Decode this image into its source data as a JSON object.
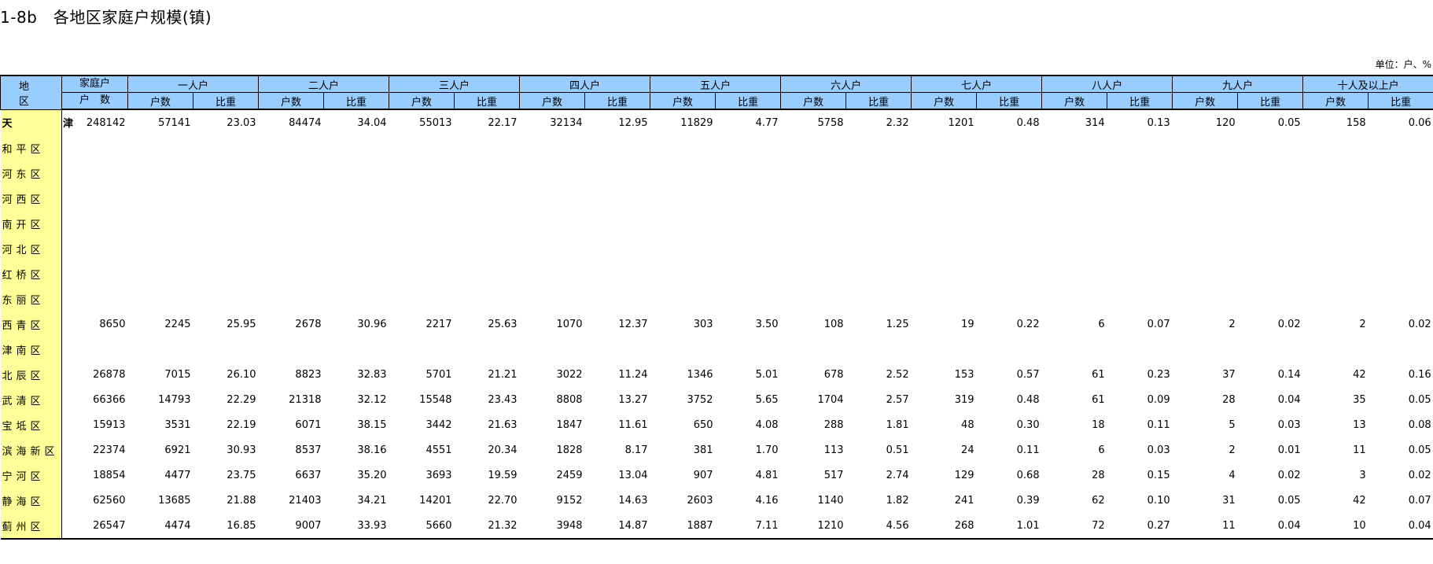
{
  "title": "1-8b   各地区家庭户规模(镇)",
  "unit": "单位：户、%",
  "header": {
    "region": "地　区",
    "total_line1": "家庭户",
    "total_line2": "户　数",
    "groups": [
      "一人户",
      "二人户",
      "三人户",
      "四人户",
      "五人户",
      "六人户",
      "七人户",
      "八人户",
      "九人户",
      "十人及以上户"
    ],
    "sub_count": "户数",
    "sub_share": "比重"
  },
  "rows": [
    {
      "region": "天  津",
      "values": [
        "248142",
        "57141",
        "23.03",
        "84474",
        "34.04",
        "55013",
        "22.17",
        "32134",
        "12.95",
        "11829",
        "4.77",
        "5758",
        "2.32",
        "1201",
        "0.48",
        "314",
        "0.13",
        "120",
        "0.05",
        "158",
        "0.06"
      ]
    },
    {
      "region": "和平区",
      "values": []
    },
    {
      "region": "河东区",
      "values": []
    },
    {
      "region": "河西区",
      "values": []
    },
    {
      "region": "南开区",
      "values": []
    },
    {
      "region": "河北区",
      "values": []
    },
    {
      "region": "红桥区",
      "values": []
    },
    {
      "region": "东丽区",
      "values": []
    },
    {
      "region": "西青区",
      "values": [
        "8650",
        "2245",
        "25.95",
        "2678",
        "30.96",
        "2217",
        "25.63",
        "1070",
        "12.37",
        "303",
        "3.50",
        "108",
        "1.25",
        "19",
        "0.22",
        "6",
        "0.07",
        "2",
        "0.02",
        "2",
        "0.02"
      ]
    },
    {
      "region": "津南区",
      "values": []
    },
    {
      "region": "北辰区",
      "values": [
        "26878",
        "7015",
        "26.10",
        "8823",
        "32.83",
        "5701",
        "21.21",
        "3022",
        "11.24",
        "1346",
        "5.01",
        "678",
        "2.52",
        "153",
        "0.57",
        "61",
        "0.23",
        "37",
        "0.14",
        "42",
        "0.16"
      ]
    },
    {
      "region": "武清区",
      "values": [
        "66366",
        "14793",
        "22.29",
        "21318",
        "32.12",
        "15548",
        "23.43",
        "8808",
        "13.27",
        "3752",
        "5.65",
        "1704",
        "2.57",
        "319",
        "0.48",
        "61",
        "0.09",
        "28",
        "0.04",
        "35",
        "0.05"
      ]
    },
    {
      "region": "宝坻区",
      "values": [
        "15913",
        "3531",
        "22.19",
        "6071",
        "38.15",
        "3442",
        "21.63",
        "1847",
        "11.61",
        "650",
        "4.08",
        "288",
        "1.81",
        "48",
        "0.30",
        "18",
        "0.11",
        "5",
        "0.03",
        "13",
        "0.08"
      ]
    },
    {
      "region": "滨海新区",
      "values": [
        "22374",
        "6921",
        "30.93",
        "8537",
        "38.16",
        "4551",
        "20.34",
        "1828",
        "8.17",
        "381",
        "1.70",
        "113",
        "0.51",
        "24",
        "0.11",
        "6",
        "0.03",
        "2",
        "0.01",
        "11",
        "0.05"
      ]
    },
    {
      "region": "宁河区",
      "values": [
        "18854",
        "4477",
        "23.75",
        "6637",
        "35.20",
        "3693",
        "19.59",
        "2459",
        "13.04",
        "907",
        "4.81",
        "517",
        "2.74",
        "129",
        "0.68",
        "28",
        "0.15",
        "4",
        "0.02",
        "3",
        "0.02"
      ]
    },
    {
      "region": "静海区",
      "values": [
        "62560",
        "13685",
        "21.88",
        "21403",
        "34.21",
        "14201",
        "22.70",
        "9152",
        "14.63",
        "2603",
        "4.16",
        "1140",
        "1.82",
        "241",
        "0.39",
        "62",
        "0.10",
        "31",
        "0.05",
        "42",
        "0.07"
      ]
    },
    {
      "region": "蓟州区",
      "values": [
        "26547",
        "4474",
        "16.85",
        "9007",
        "33.93",
        "5660",
        "21.32",
        "3948",
        "14.87",
        "1887",
        "7.11",
        "1210",
        "4.56",
        "268",
        "1.01",
        "72",
        "0.27",
        "11",
        "0.04",
        "10",
        "0.04"
      ]
    }
  ],
  "colors": {
    "header_bg": "#99ccff",
    "region_bg": "#ffff99"
  }
}
